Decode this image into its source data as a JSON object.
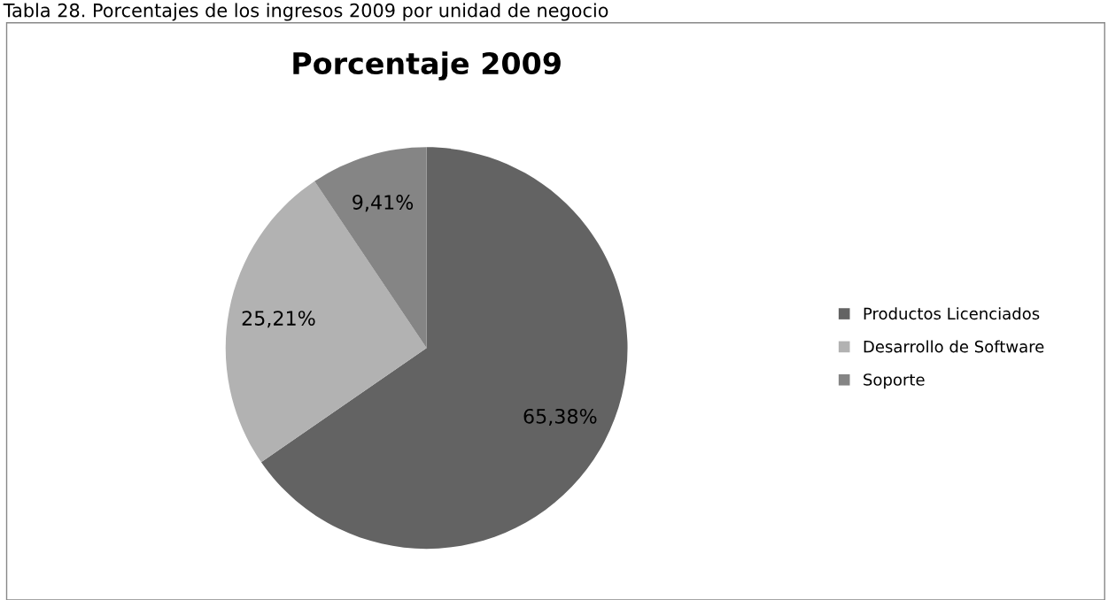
{
  "chart_data": {
    "type": "pie",
    "title": "Porcentaje 2009",
    "annotations": [
      "Tabla 28. Porcentajes de los ingresos 2009 por unidad de negocio"
    ],
    "categories": [
      "Productos Licenciados",
      "Desarrollo de Software",
      "Soporte"
    ],
    "values": [
      65.38,
      25.21,
      9.41
    ],
    "colors": [
      "#636363",
      "#b2b2b2",
      "#858585"
    ],
    "value_labels": [
      "65,38%",
      "25,21%",
      "9,41%"
    ],
    "legend": "right"
  }
}
